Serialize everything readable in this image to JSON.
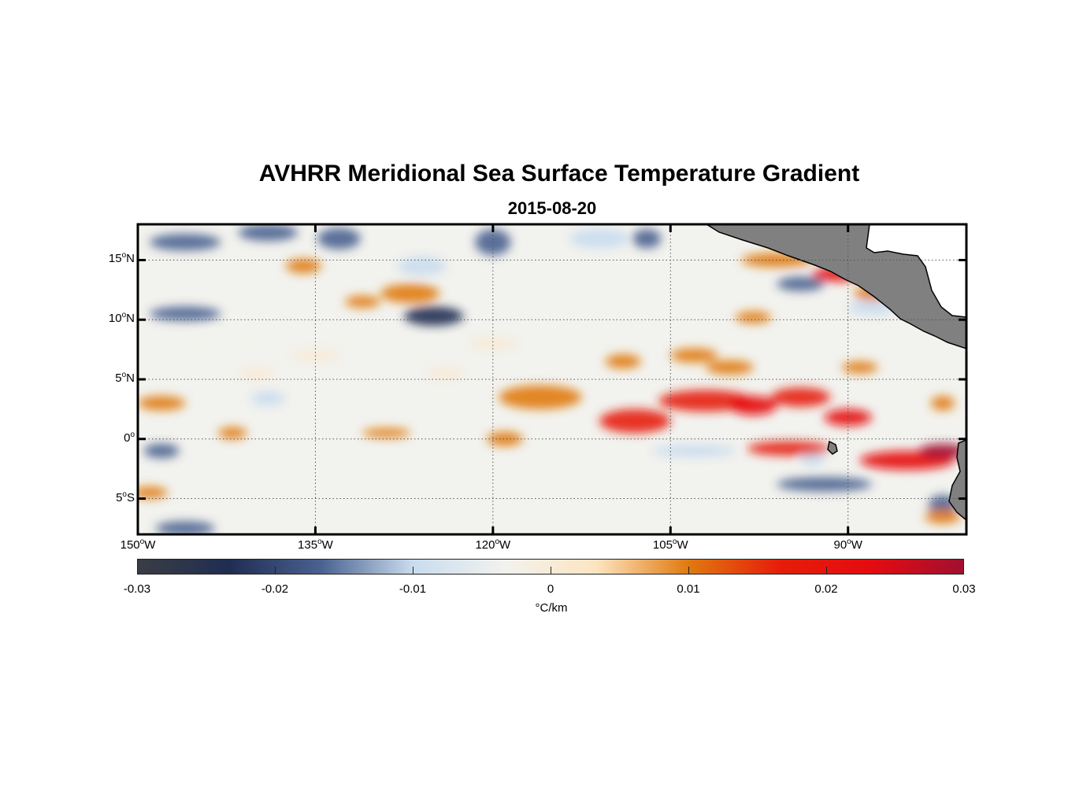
{
  "title": "AVHRR Meridional Sea Surface Temperature Gradient",
  "subtitle": "2015-08-20",
  "chart_data": {
    "type": "heatmap",
    "title": "AVHRR Meridional Sea Surface Temperature Gradient",
    "subtitle": "2015-08-20",
    "lon_range": [
      -150,
      -80
    ],
    "lat_range": [
      -8,
      18
    ],
    "lat_ticks": [
      {
        "value": 15,
        "num": "15",
        "hemi": "N"
      },
      {
        "value": 10,
        "num": "10",
        "hemi": "N"
      },
      {
        "value": 5,
        "num": "5",
        "hemi": "N"
      },
      {
        "value": 0,
        "num": "0",
        "hemi": ""
      },
      {
        "value": -5,
        "num": "5",
        "hemi": "S"
      }
    ],
    "lon_ticks": [
      {
        "value": -150,
        "num": "150",
        "hemi": "W"
      },
      {
        "value": -135,
        "num": "135",
        "hemi": "W"
      },
      {
        "value": -120,
        "num": "120",
        "hemi": "W"
      },
      {
        "value": -105,
        "num": "105",
        "hemi": "W"
      },
      {
        "value": -90,
        "num": "90",
        "hemi": "W"
      }
    ],
    "grid": true,
    "land_color": "#808080",
    "colorbar": {
      "range": [
        -0.03,
        0.03
      ],
      "ticks": [
        "-0.03",
        "-0.02",
        "-0.01",
        "0",
        "0.01",
        "0.02",
        "0.03"
      ],
      "units": "°C/km",
      "colors": [
        "#3a3d44",
        "#1f2d52",
        "#4a6290",
        "#c9dcee",
        "#f2f2ee",
        "#fde4c0",
        "#e07a10",
        "#e61d0a",
        "#e50b10",
        "#a01030"
      ]
    },
    "features": [
      {
        "lon": -146,
        "lat": 16.5,
        "dlon": 3,
        "dlat": 0.7,
        "value": -0.018
      },
      {
        "lon": -139,
        "lat": 17.3,
        "dlon": 2.5,
        "dlat": 0.7,
        "value": -0.018
      },
      {
        "lon": -133,
        "lat": 16.8,
        "dlon": 1.8,
        "dlat": 0.9,
        "value": -0.02
      },
      {
        "lon": -120,
        "lat": 16.5,
        "dlon": 1.5,
        "dlat": 1.1,
        "value": -0.02
      },
      {
        "lon": -111,
        "lat": 16.8,
        "dlon": 2.5,
        "dlat": 0.8,
        "value": -0.012
      },
      {
        "lon": -107,
        "lat": 16.8,
        "dlon": 1.2,
        "dlat": 0.8,
        "value": -0.02
      },
      {
        "lon": -146,
        "lat": 10.5,
        "dlon": 3.0,
        "dlat": 0.6,
        "value": -0.018
      },
      {
        "lon": -125,
        "lat": 10.3,
        "dlon": 2.5,
        "dlat": 0.8,
        "value": -0.022
      },
      {
        "lon": -148,
        "lat": -1.0,
        "dlon": 1.5,
        "dlat": 0.6,
        "value": -0.018
      },
      {
        "lon": -146,
        "lat": -7.5,
        "dlon": 2.5,
        "dlat": 0.6,
        "value": -0.018
      },
      {
        "lon": -139,
        "lat": 3.4,
        "dlon": 1.4,
        "dlat": 0.6,
        "value": -0.012
      },
      {
        "lon": -126,
        "lat": 14.5,
        "dlon": 2.0,
        "dlat": 0.8,
        "value": -0.012
      },
      {
        "lon": -103,
        "lat": -1.0,
        "dlon": 3.5,
        "dlat": 0.5,
        "value": -0.012
      },
      {
        "lon": -92,
        "lat": -3.8,
        "dlon": 4.0,
        "dlat": 0.6,
        "value": -0.02
      },
      {
        "lon": -94,
        "lat": 13.0,
        "dlon": 2.0,
        "dlat": 0.6,
        "value": -0.015
      },
      {
        "lon": -88,
        "lat": 11.0,
        "dlon": 2.0,
        "dlat": 0.6,
        "value": -0.01
      },
      {
        "lon": -82,
        "lat": -5.5,
        "dlon": 1.2,
        "dlat": 0.8,
        "value": -0.015
      },
      {
        "lon": -93,
        "lat": -1.5,
        "dlon": 1.0,
        "dlat": 0.8,
        "value": -0.012
      },
      {
        "lon": -136,
        "lat": 14.5,
        "dlon": 1.5,
        "dlat": 0.6,
        "value": 0.01
      },
      {
        "lon": -127,
        "lat": 12.2,
        "dlon": 2.5,
        "dlat": 0.8,
        "value": 0.013
      },
      {
        "lon": -131,
        "lat": 11.5,
        "dlon": 1.5,
        "dlat": 0.5,
        "value": 0.01
      },
      {
        "lon": -148,
        "lat": 3.0,
        "dlon": 2.0,
        "dlat": 0.6,
        "value": 0.011
      },
      {
        "lon": -142,
        "lat": 0.5,
        "dlon": 1.2,
        "dlat": 0.5,
        "value": 0.009
      },
      {
        "lon": -149,
        "lat": -4.5,
        "dlon": 1.5,
        "dlat": 0.5,
        "value": 0.011
      },
      {
        "lon": -116,
        "lat": 3.5,
        "dlon": 3.5,
        "dlat": 1.0,
        "value": 0.012
      },
      {
        "lon": -119,
        "lat": 0.0,
        "dlon": 1.5,
        "dlat": 0.6,
        "value": 0.01
      },
      {
        "lon": -129,
        "lat": 0.5,
        "dlon": 2.0,
        "dlat": 0.4,
        "value": 0.008
      },
      {
        "lon": -109,
        "lat": 6.5,
        "dlon": 1.5,
        "dlat": 0.6,
        "value": 0.01
      },
      {
        "lon": -108,
        "lat": 1.5,
        "dlon": 3.0,
        "dlat": 1.0,
        "value": 0.016
      },
      {
        "lon": -102,
        "lat": 3.2,
        "dlon": 4.0,
        "dlat": 0.9,
        "value": 0.018
      },
      {
        "lon": -98,
        "lat": 2.8,
        "dlon": 2.0,
        "dlat": 0.8,
        "value": 0.022
      },
      {
        "lon": -94,
        "lat": 3.5,
        "dlon": 2.5,
        "dlat": 0.8,
        "value": 0.015
      },
      {
        "lon": -90,
        "lat": 1.8,
        "dlon": 2.0,
        "dlat": 0.7,
        "value": 0.024
      },
      {
        "lon": -95,
        "lat": -0.8,
        "dlon": 3.5,
        "dlat": 0.6,
        "value": 0.018
      },
      {
        "lon": -85,
        "lat": -1.8,
        "dlon": 4.0,
        "dlat": 0.8,
        "value": 0.02
      },
      {
        "lon": -82,
        "lat": -1.0,
        "dlon": 2.0,
        "dlat": 0.6,
        "value": 0.028
      },
      {
        "lon": -82,
        "lat": -6.5,
        "dlon": 1.5,
        "dlat": 0.6,
        "value": 0.013
      },
      {
        "lon": -96,
        "lat": 15.0,
        "dlon": 3.0,
        "dlat": 0.6,
        "value": 0.012
      },
      {
        "lon": -91,
        "lat": 13.8,
        "dlon": 2.0,
        "dlat": 0.6,
        "value": 0.02
      },
      {
        "lon": -88,
        "lat": 12.2,
        "dlon": 1.5,
        "dlat": 0.6,
        "value": 0.013
      },
      {
        "lon": -98,
        "lat": 10.2,
        "dlon": 1.5,
        "dlat": 0.5,
        "value": 0.011
      },
      {
        "lon": -103,
        "lat": 7.0,
        "dlon": 2.0,
        "dlat": 0.6,
        "value": 0.011
      },
      {
        "lon": -100,
        "lat": 6.0,
        "dlon": 2.0,
        "dlat": 0.6,
        "value": 0.012
      },
      {
        "lon": -89,
        "lat": 6.0,
        "dlon": 1.5,
        "dlat": 0.5,
        "value": 0.011
      },
      {
        "lon": -82,
        "lat": 3.0,
        "dlon": 1.0,
        "dlat": 0.6,
        "value": 0.012
      },
      {
        "lon": -140,
        "lat": 5.5,
        "dlon": 1.5,
        "dlat": 0.4,
        "value": 0.006
      },
      {
        "lon": -124,
        "lat": 5.5,
        "dlon": 1.5,
        "dlat": 0.4,
        "value": 0.006
      },
      {
        "lon": -135,
        "lat": 7.0,
        "dlon": 2.0,
        "dlat": 0.4,
        "value": 0.005
      },
      {
        "lon": -113,
        "lat": 8.5,
        "dlon": 2.0,
        "dlat": 0.4,
        "value": -0.006
      },
      {
        "lon": -143,
        "lat": 8.0,
        "dlon": 2.5,
        "dlat": 0.4,
        "value": -0.005
      },
      {
        "lon": -120,
        "lat": 8.0,
        "dlon": 2.0,
        "dlat": 0.4,
        "value": 0.005
      }
    ]
  }
}
